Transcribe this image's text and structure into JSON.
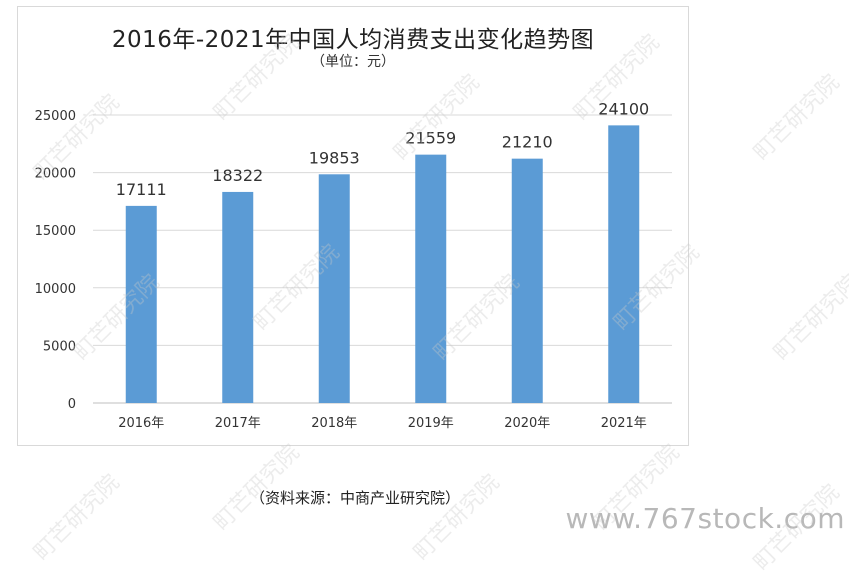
{
  "watermark_text": "町芒研究院",
  "chart_data": {
    "type": "bar",
    "title": "2016年-2021年中国人均消费支出变化趋势图",
    "subtitle": "（单位：元）",
    "categories": [
      "2016年",
      "2017年",
      "2018年",
      "2019年",
      "2020年",
      "2021年"
    ],
    "values": [
      17111,
      18322,
      19853,
      21559,
      21210,
      24100
    ],
    "ylim": [
      0,
      25000
    ],
    "yticks": [
      0,
      5000,
      10000,
      15000,
      20000,
      25000
    ],
    "bar_color": "#5b9bd5",
    "grid": true,
    "legend": false
  },
  "source_note": "（资料来源：中商产业研究院）",
  "site_watermark": "www.767stock.com"
}
